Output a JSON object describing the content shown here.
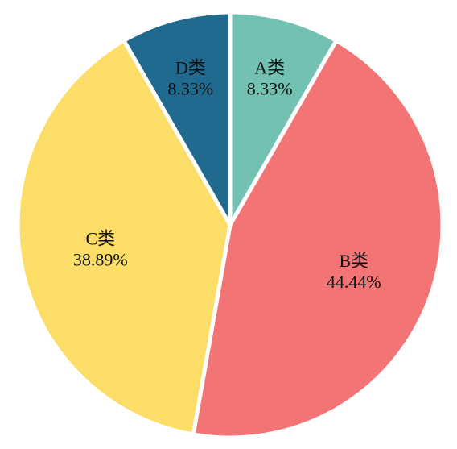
{
  "chart_data": {
    "type": "pie",
    "title": "",
    "categories": [
      "A类",
      "B类",
      "C类",
      "D类"
    ],
    "values": [
      8.33,
      44.44,
      38.89,
      8.33
    ],
    "value_labels": [
      "8.33%",
      "44.44%",
      "38.89%",
      "8.33%"
    ],
    "colors": [
      "#72C1B2",
      "#F27474",
      "#FCDD67",
      "#1F6A8E"
    ],
    "start_angle": "12 o'clock",
    "direction": "clockwise",
    "legend": "none",
    "slice_separator_color": "#ffffff"
  }
}
